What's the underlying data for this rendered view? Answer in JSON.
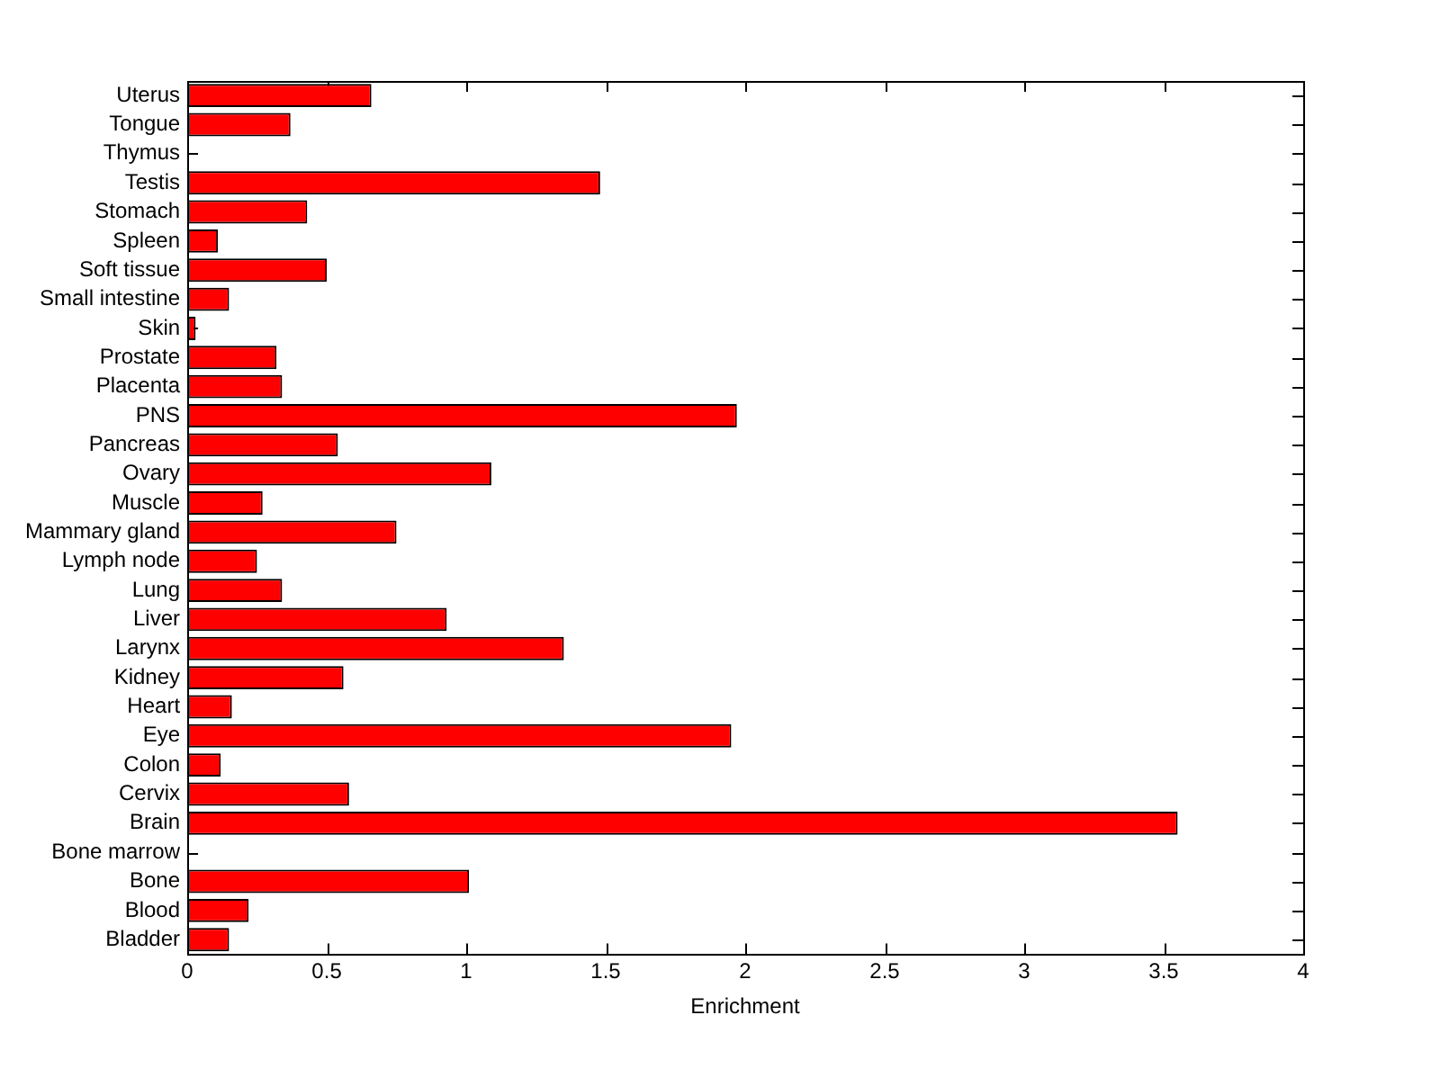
{
  "chart_data": {
    "type": "bar",
    "orientation": "horizontal",
    "xlabel": "Enrichment",
    "categories": [
      "Uterus",
      "Tongue",
      "Thymus",
      "Testis",
      "Stomach",
      "Spleen",
      "Soft tissue",
      "Small intestine",
      "Skin",
      "Prostate",
      "Placenta",
      "PNS",
      "Pancreas",
      "Ovary",
      "Muscle",
      "Mammary gland",
      "Lymph node",
      "Lung",
      "Liver",
      "Larynx",
      "Kidney",
      "Heart",
      "Eye",
      "Colon",
      "Cervix",
      "Brain",
      "Bone marrow",
      "Bone",
      "Blood",
      "Bladder"
    ],
    "values": [
      0.66,
      0.37,
      0,
      1.48,
      0.43,
      0.11,
      0.5,
      0.15,
      0.03,
      0.32,
      0.34,
      1.97,
      0.54,
      1.09,
      0.27,
      0.75,
      0.25,
      0.34,
      0.93,
      1.35,
      0.56,
      0.16,
      1.95,
      0.12,
      0.58,
      3.55,
      0,
      1.01,
      0.22,
      0.15
    ],
    "color": "#ff0000",
    "xlim": [
      0,
      4
    ],
    "xticks": [
      0,
      0.5,
      1,
      1.5,
      2,
      2.5,
      3,
      3.5,
      4
    ],
    "grid": false,
    "legend": false
  }
}
